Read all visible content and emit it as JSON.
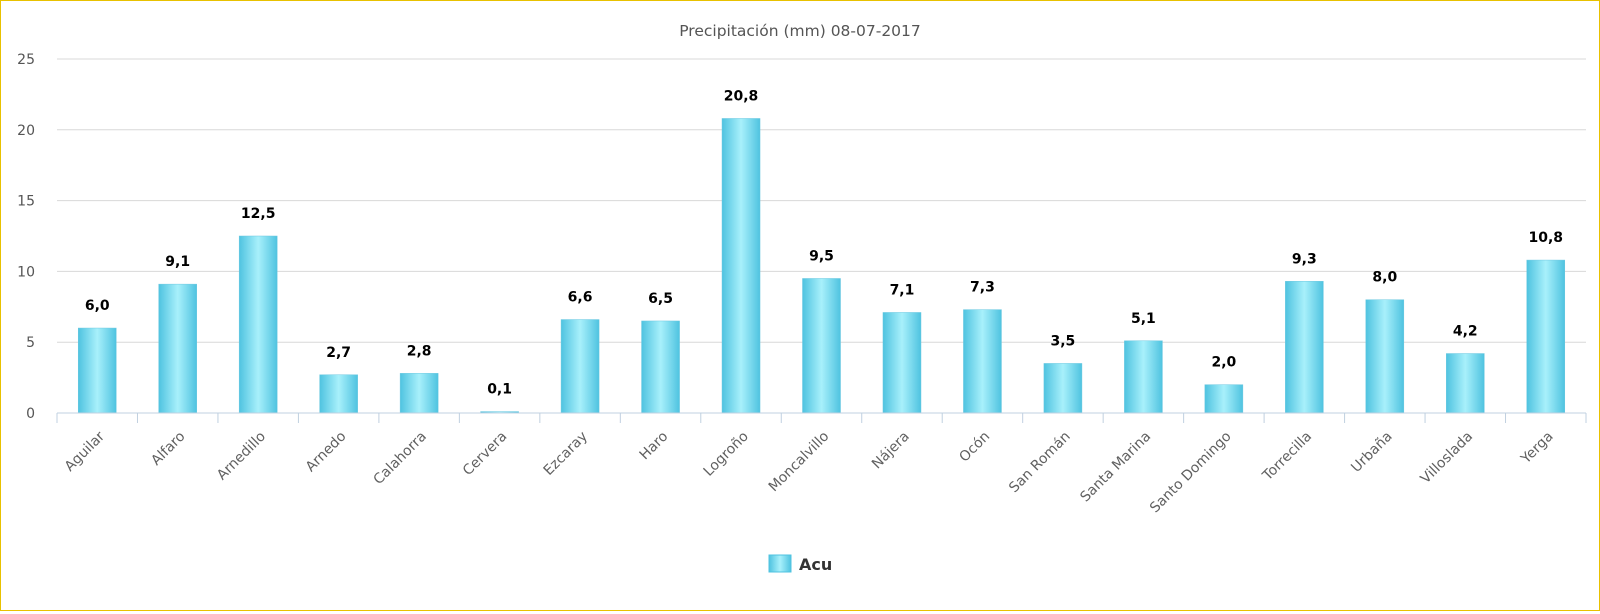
{
  "chart_data": {
    "type": "bar",
    "title": "Precipitación (mm) 08-07-2017",
    "categories": [
      "Aguilar",
      "Alfaro",
      "Arnedillo",
      "Arnedo",
      "Calahorra",
      "Cervera",
      "Ezcaray",
      "Haro",
      "Logroño",
      "Moncalvillo",
      "Nájera",
      "Ocón",
      "San Román",
      "Santa Marina",
      "Santo Domingo",
      "Torrecilla",
      "Urbaña",
      "Villoslada",
      "Yerga"
    ],
    "series": [
      {
        "name": "Acu",
        "values": [
          6.0,
          9.1,
          12.5,
          2.7,
          2.8,
          0.1,
          6.6,
          6.5,
          20.8,
          9.5,
          7.1,
          7.3,
          3.5,
          5.1,
          2.0,
          9.3,
          8.0,
          4.2,
          10.8
        ],
        "data_labels": [
          "6,0",
          "9,1",
          "12,5",
          "2,7",
          "2,8",
          "0,1",
          "6,6",
          "6,5",
          "20,8",
          "9,5",
          "7,1",
          "7,3",
          "3,5",
          "5,1",
          "2,0",
          "9,3",
          "8,0",
          "4,2",
          "10,8"
        ]
      }
    ],
    "yticks": [
      0,
      5,
      10,
      15,
      20,
      25
    ],
    "ylim": [
      0,
      25
    ],
    "xlabel": "",
    "ylabel": "",
    "grid": true,
    "legend": "bottom-center",
    "colors": {
      "bar_edge": "#4fc3e0",
      "bar_center": "#a8f0fb",
      "grid": "#d8d8d8",
      "axis": "#c0d0e0",
      "border": "#e8c100"
    }
  }
}
